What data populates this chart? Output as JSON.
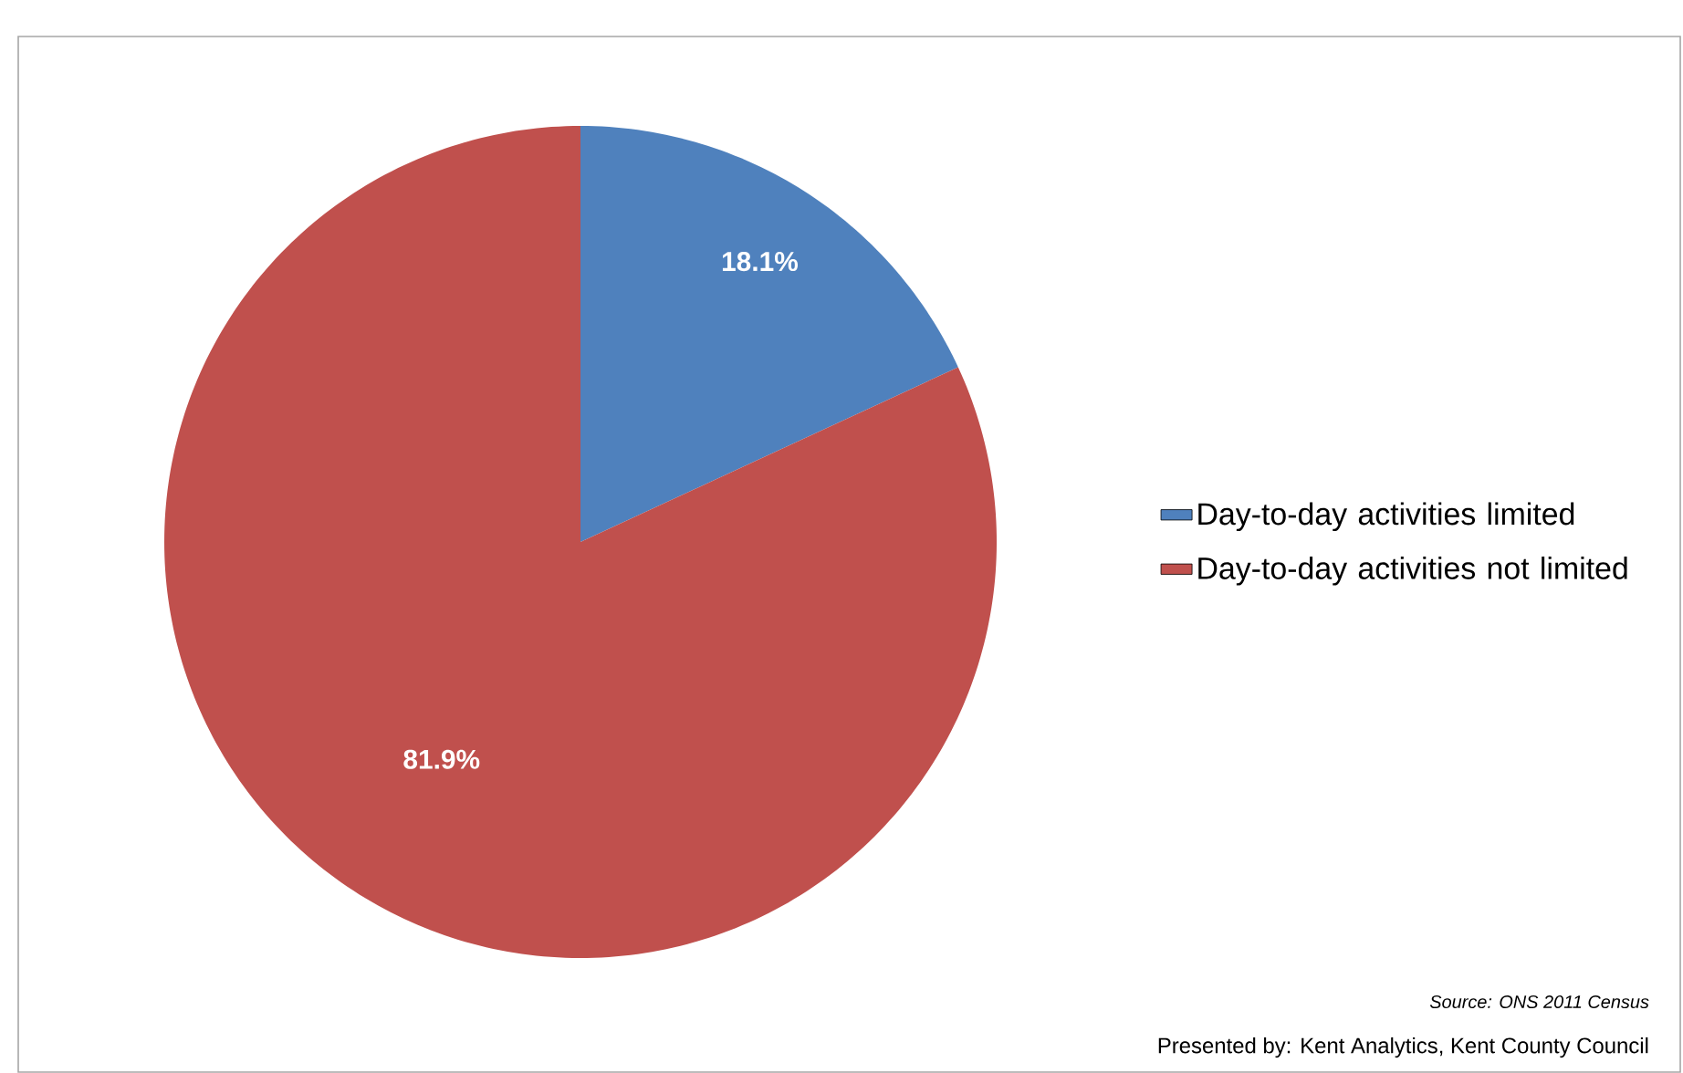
{
  "chart_data": {
    "type": "pie",
    "categories": [
      "Day-to-day activities limited",
      "Day-to-day activities not limited"
    ],
    "values": [
      18.1,
      81.9
    ],
    "colors": [
      "#4f81bd",
      "#c0504d"
    ],
    "value_labels": [
      "18.1%",
      "81.9%"
    ],
    "legend": "right",
    "annotations": [
      "Source: ONS 2011 Census",
      "Presented by: Kent Analytics, Kent County Council"
    ]
  }
}
